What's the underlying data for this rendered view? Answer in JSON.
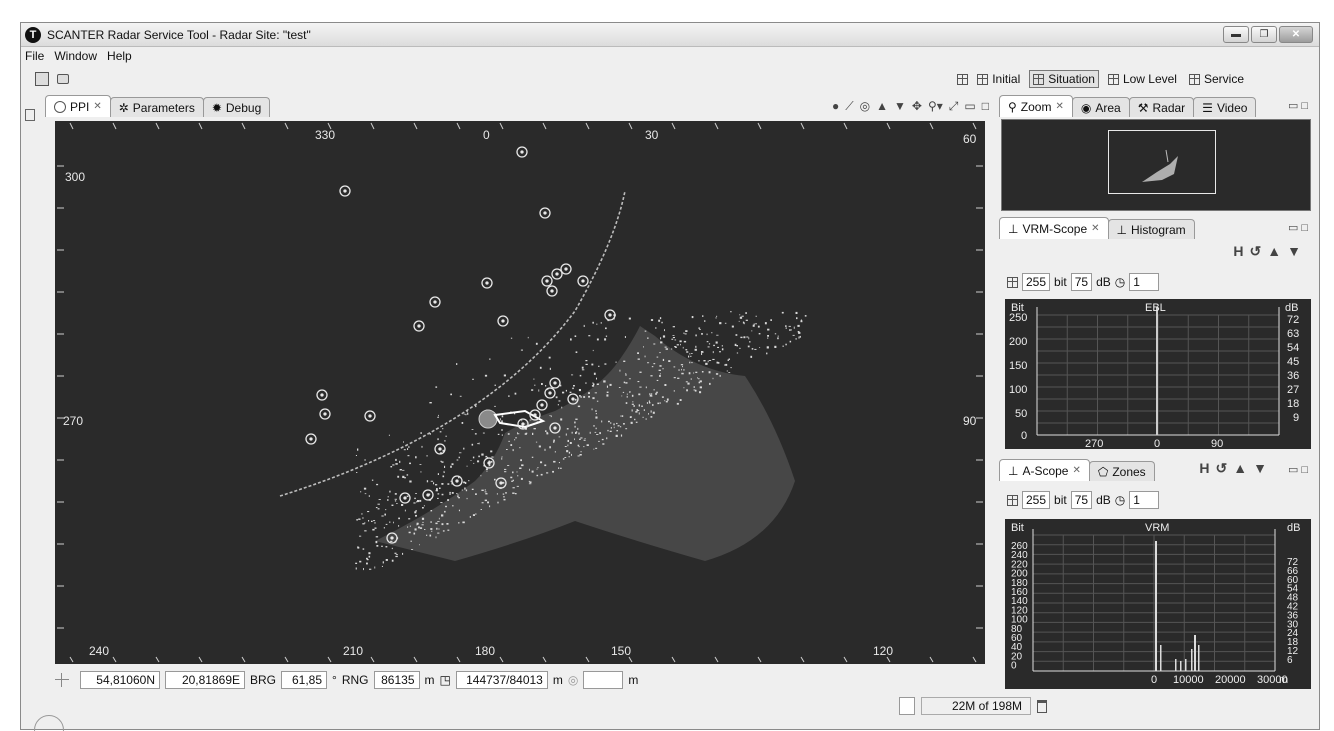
{
  "window": {
    "title": "SCANTER Radar Service Tool - Radar Site: \"test\"",
    "app_icon": "T",
    "controls": [
      "minimize",
      "restore",
      "close"
    ]
  },
  "menu": [
    "File",
    "Window",
    "Help"
  ],
  "perspectives": [
    "Initial",
    "Situation",
    "Low Level",
    "Service"
  ],
  "active_perspective": "Situation",
  "ppi_panel": {
    "tabs": [
      {
        "label": "PPI",
        "icon": "radar-icon",
        "active": true,
        "closable": true
      },
      {
        "label": "Parameters",
        "icon": "gear-icon"
      },
      {
        "label": "Debug",
        "icon": "bug-icon"
      }
    ],
    "range_bearing_labels": [
      "330",
      "0",
      "30",
      "60",
      "300",
      "270",
      "90",
      "240",
      "210",
      "180",
      "150",
      "120"
    ],
    "status": {
      "lat": "54,81060N",
      "lon": "20,81869E",
      "brg_label": "BRG",
      "brg_value": "61,85",
      "brg_unit": "°",
      "rng_label": "RNG",
      "rng_value": "86135",
      "rng_unit": "m",
      "xy_value": "144737/84013",
      "xy_unit": "m",
      "extra_value": "",
      "extra_unit": "m"
    }
  },
  "zoom_panel": {
    "tabs": [
      {
        "label": "Zoom",
        "icon": "search-icon",
        "active": true,
        "closable": true
      },
      {
        "label": "Area",
        "icon": "globe-icon"
      },
      {
        "label": "Radar",
        "icon": "wrench-icon"
      },
      {
        "label": "Video",
        "icon": "sliders-icon"
      }
    ]
  },
  "vrm_scope": {
    "tabs": [
      {
        "label": "VRM-Scope",
        "icon": "scope-icon",
        "active": true,
        "closable": true
      },
      {
        "label": "Histogram",
        "icon": "scope-icon"
      }
    ],
    "bit_value": "255",
    "bit_unit": "bit",
    "db_value": "75",
    "db_unit": "dB",
    "count_value": "1",
    "graph_title": "EBL",
    "left_axis_label": "Bit",
    "right_axis_label": "dB",
    "left_ticks": [
      "250",
      "200",
      "150",
      "100",
      "50",
      "0"
    ],
    "right_ticks": [
      "72",
      "63",
      "54",
      "45",
      "36",
      "27",
      "18",
      "9"
    ],
    "x_ticks": [
      "270",
      "0",
      "90"
    ]
  },
  "a_scope": {
    "tabs": [
      {
        "label": "A-Scope",
        "icon": "scope-icon",
        "active": true,
        "closable": true
      },
      {
        "label": "Zones",
        "icon": "zones-icon"
      }
    ],
    "bit_value": "255",
    "bit_unit": "bit",
    "db_value": "75",
    "db_unit": "dB",
    "count_value": "1",
    "graph_title": "VRM",
    "left_axis_label": "Bit",
    "right_axis_label": "dB",
    "left_ticks": [
      "260",
      "240",
      "220",
      "200",
      "180",
      "160",
      "140",
      "120",
      "100",
      "80",
      "60",
      "40",
      "20",
      "0"
    ],
    "right_ticks": [
      "72",
      "66",
      "60",
      "54",
      "48",
      "42",
      "36",
      "30",
      "24",
      "18",
      "12",
      "6"
    ],
    "x_ticks": [
      "0",
      "10000",
      "20000",
      "30000"
    ],
    "x_unit": "m"
  },
  "memory": "22M of 198M",
  "colors": {
    "display_bg": "#2a2a2a",
    "echo": "#e8e8e8",
    "window_bg": "#efefef"
  }
}
